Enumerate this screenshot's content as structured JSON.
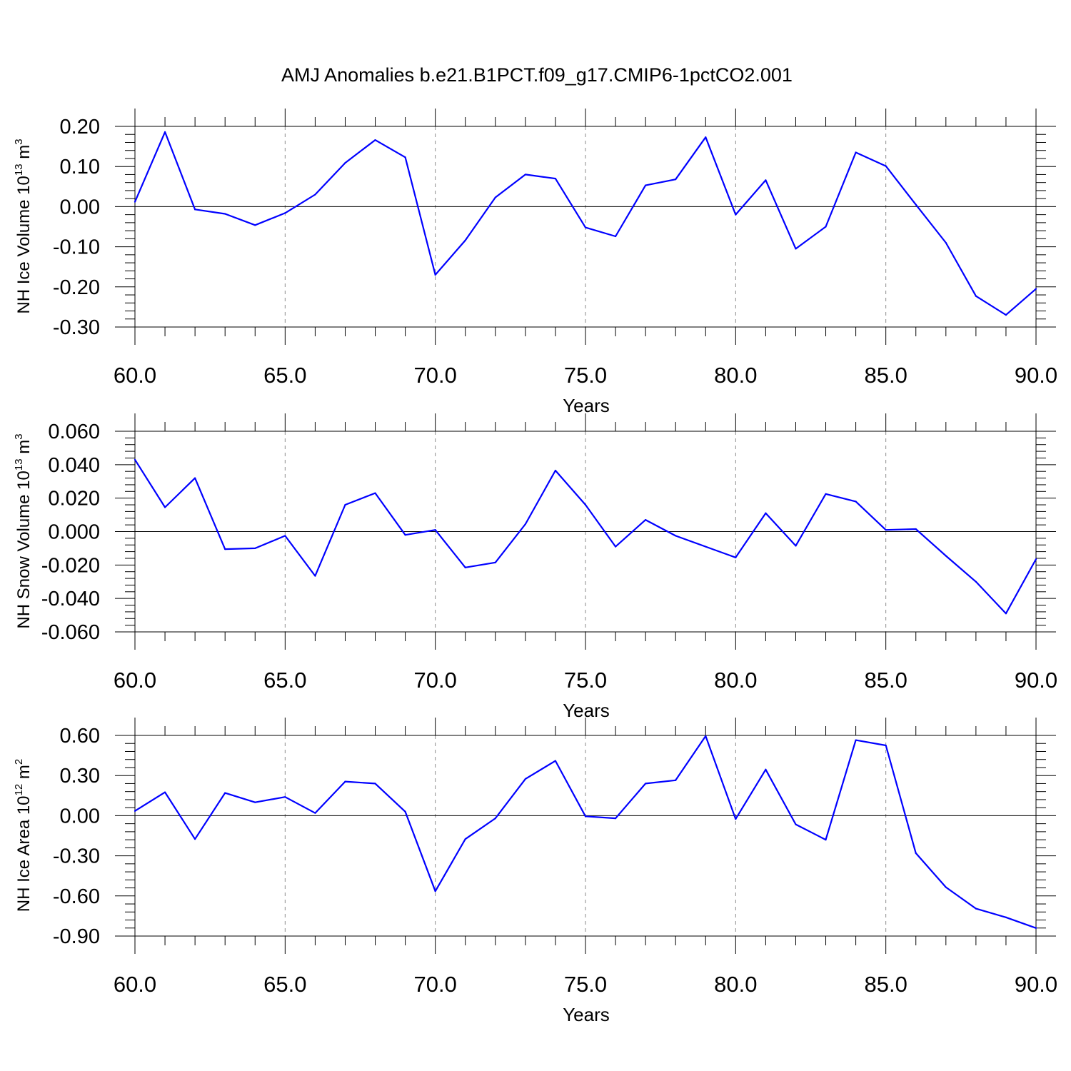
{
  "title": "AMJ Anomalies b.e21.B1PCT.f09_g17.CMIP6-1pctCO2.001",
  "colors": {
    "series": "#0000ff",
    "frame": "#000000",
    "grid": "#8a8a8a"
  },
  "chart_data": [
    {
      "type": "line",
      "xlabel": "Years",
      "ylabel": {
        "text": "NH Ice Volume 10",
        "exp": "13",
        "unit": " m",
        "unit_exp": "3"
      },
      "xlim": [
        60,
        90
      ],
      "ylim": [
        -0.3,
        0.2
      ],
      "xticks": [
        60,
        65,
        70,
        75,
        80,
        85,
        90
      ],
      "xtick_labels": [
        "60.0",
        "65.0",
        "70.0",
        "75.0",
        "80.0",
        "85.0",
        "90.0"
      ],
      "yticks": [
        0.2,
        0.1,
        0.0,
        -0.1,
        -0.2,
        -0.3
      ],
      "ytick_labels": [
        "0.20",
        "0.10",
        "0.00",
        "-0.10",
        "-0.20",
        "-0.30"
      ],
      "grid": "vertical dashed at labeled x ticks; solid line at y = 0",
      "x": [
        60,
        61,
        62,
        63,
        64,
        65,
        66,
        67,
        68,
        69,
        70,
        71,
        72,
        73,
        74,
        75,
        76,
        77,
        78,
        79,
        80,
        81,
        82,
        83,
        84,
        85,
        86,
        87,
        88,
        89,
        90
      ],
      "values": [
        0.012,
        0.186,
        -0.007,
        -0.018,
        -0.046,
        -0.016,
        0.03,
        0.109,
        0.166,
        0.123,
        -0.17,
        -0.084,
        0.023,
        0.08,
        0.07,
        -0.052,
        -0.074,
        0.053,
        0.068,
        0.173,
        -0.02,
        0.066,
        -0.105,
        -0.05,
        0.135,
        0.101,
        0.005,
        -0.09,
        -0.223,
        -0.27,
        -0.205
      ]
    },
    {
      "type": "line",
      "xlabel": "Years",
      "ylabel": {
        "text": "NH Snow Volume 10",
        "exp": "13",
        "unit": " m",
        "unit_exp": "3"
      },
      "xlim": [
        60,
        90
      ],
      "ylim": [
        -0.06,
        0.06
      ],
      "xticks": [
        60,
        65,
        70,
        75,
        80,
        85,
        90
      ],
      "xtick_labels": [
        "60.0",
        "65.0",
        "70.0",
        "75.0",
        "80.0",
        "85.0",
        "90.0"
      ],
      "yticks": [
        0.06,
        0.04,
        0.02,
        0.0,
        -0.02,
        -0.04,
        -0.06
      ],
      "ytick_labels": [
        "0.060",
        "0.040",
        "0.020",
        "0.000",
        "-0.020",
        "-0.040",
        "-0.060"
      ],
      "grid": "vertical dashed at labeled x ticks; solid line at y = 0",
      "x": [
        60,
        61,
        62,
        63,
        64,
        65,
        66,
        67,
        68,
        69,
        70,
        71,
        72,
        73,
        74,
        75,
        76,
        77,
        78,
        79,
        80,
        81,
        82,
        83,
        84,
        85,
        86,
        87,
        88,
        89,
        90
      ],
      "values": [
        0.043,
        0.0145,
        0.032,
        -0.0105,
        -0.01,
        -0.0025,
        -0.0265,
        0.016,
        0.023,
        -0.002,
        0.001,
        -0.0215,
        -0.0185,
        0.0045,
        0.0365,
        0.016,
        -0.009,
        0.007,
        -0.0025,
        -0.009,
        -0.0155,
        0.011,
        -0.0085,
        0.0225,
        0.018,
        0.001,
        0.0015,
        -0.0145,
        -0.03,
        -0.049,
        -0.0165
      ]
    },
    {
      "type": "line",
      "xlabel": "Years",
      "ylabel": {
        "text": "NH Ice Area 10",
        "exp": "12",
        "unit": " m",
        "unit_exp": "2"
      },
      "xlim": [
        60,
        90
      ],
      "ylim": [
        -0.9,
        0.6
      ],
      "xticks": [
        60,
        65,
        70,
        75,
        80,
        85,
        90
      ],
      "xtick_labels": [
        "60.0",
        "65.0",
        "70.0",
        "75.0",
        "80.0",
        "85.0",
        "90.0"
      ],
      "yticks": [
        0.6,
        0.3,
        0.0,
        -0.3,
        -0.6,
        -0.9
      ],
      "ytick_labels": [
        "0.60",
        "0.30",
        "0.00",
        "-0.30",
        "-0.60",
        "-0.90"
      ],
      "grid": "vertical dashed at labeled x ticks; solid line at y = 0",
      "x": [
        60,
        61,
        62,
        63,
        64,
        65,
        66,
        67,
        68,
        69,
        70,
        71,
        72,
        73,
        74,
        75,
        76,
        77,
        78,
        79,
        80,
        81,
        82,
        83,
        84,
        85,
        86,
        87,
        88,
        89,
        90
      ],
      "values": [
        0.035,
        0.175,
        -0.175,
        0.17,
        0.1,
        0.14,
        0.02,
        0.255,
        0.24,
        0.03,
        -0.565,
        -0.175,
        -0.02,
        0.275,
        0.41,
        -0.005,
        -0.02,
        0.24,
        0.265,
        0.595,
        -0.025,
        0.345,
        -0.065,
        -0.18,
        0.565,
        0.525,
        -0.28,
        -0.535,
        -0.695,
        -0.76,
        -0.84
      ]
    }
  ]
}
